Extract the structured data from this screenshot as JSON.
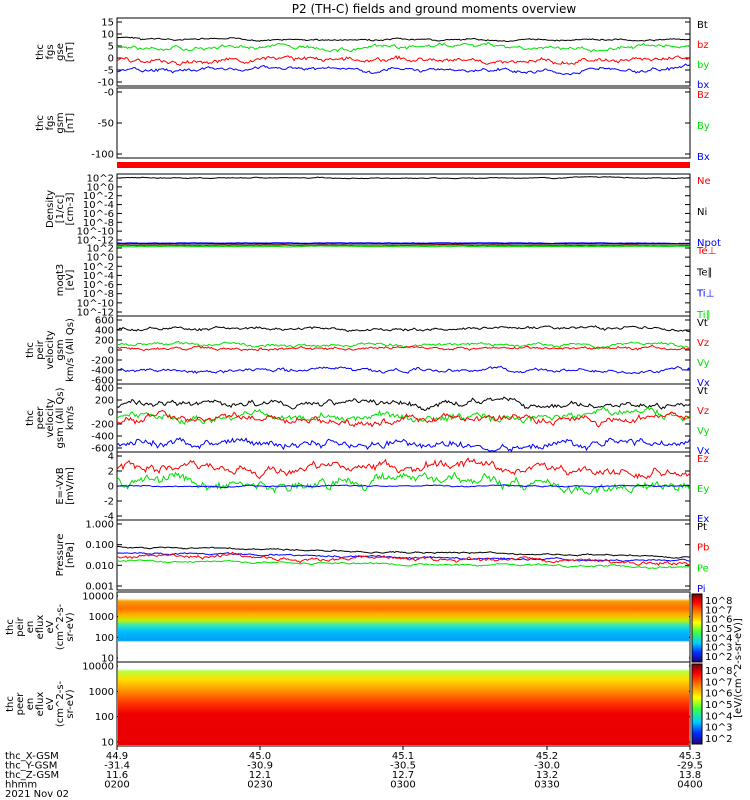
{
  "title": "P2 (TH-C) fields and ground moments overview",
  "footer": {
    "labels": [
      "thc_X-GSM",
      "thc_Y-GSM",
      "thc_Z-GSM",
      "hhmm",
      "2021 Nov 02"
    ],
    "columns": [
      [
        "44.9",
        "-31.4",
        "11.6",
        "0200"
      ],
      [
        "45.0",
        "-30.9",
        "12.1",
        "0230"
      ],
      [
        "45.1",
        "-30.5",
        "12.7",
        "0300"
      ],
      [
        "45.2",
        "-30.0",
        "13.2",
        "0330"
      ],
      [
        "45.3",
        "-29.5",
        "13.8",
        "0400"
      ]
    ]
  },
  "colorbar": {
    "label": "[eV/(cm^2-s-sr-eV)]",
    "label_alt": "[eV/(cm^2-s-str-eV)](All Qs)",
    "ticks_top": [
      "10^8",
      "10^7",
      "10^6",
      "10^5",
      "10^4",
      "10^3",
      "10^2"
    ],
    "ticks_bot": [
      "10^8",
      "10^7",
      "10^6",
      "10^5",
      "10^4",
      "10^3",
      "10^2"
    ]
  },
  "colors": {
    "black": "#000000",
    "red": "#ff0000",
    "green": "#00e000",
    "blue": "#0000ff"
  },
  "chart_data": [
    {
      "type": "line",
      "panel": "fgs_gse",
      "ylabel": [
        "thc",
        "fgs",
        "gse",
        "[nT]"
      ],
      "yticks": [
        "15",
        "10",
        "5",
        "0",
        "-5",
        "-10"
      ],
      "ylim": [
        -10,
        15
      ],
      "series": [
        {
          "name": "Bt",
          "color": "#000000"
        },
        {
          "name": "bz",
          "color": "#ff0000"
        },
        {
          "name": "by",
          "color": "#00e000"
        },
        {
          "name": "bx",
          "color": "#0000ff"
        }
      ]
    },
    {
      "type": "line",
      "panel": "fgs_gsm",
      "ylabel": [
        "thc",
        "fgs",
        "gsm",
        "[nT]"
      ],
      "yticks": [
        "-0",
        "-50",
        "-100"
      ],
      "ylim": [
        -130,
        0
      ],
      "series": [
        {
          "name": "Bz",
          "color": "#ff0000"
        },
        {
          "name": "By",
          "color": "#00e000"
        },
        {
          "name": "Bx",
          "color": "#0000ff"
        }
      ]
    },
    {
      "type": "line",
      "panel": "density",
      "ylabel": [
        "Density",
        "[1/cc]",
        "[cm-3]"
      ],
      "yticks": [
        "10^2",
        "10^0",
        "10^-2",
        "10^-4",
        "10^-6",
        "10^-8",
        "10^-10",
        "10^-12"
      ],
      "series": [
        {
          "name": "Ne",
          "color": "#ff0000"
        },
        {
          "name": "Ni",
          "color": "#000000"
        },
        {
          "name": "Npot",
          "color": "#0000ff"
        }
      ]
    },
    {
      "type": "line",
      "panel": "temperature",
      "ylabel": [
        "moqt3",
        "[eV]"
      ],
      "yticks": [
        "10^2",
        "10^0",
        "10^-2",
        "10^-4",
        "10^-6",
        "10^-8",
        "10^-10",
        "10^-12"
      ],
      "series": [
        {
          "name": "Te⊥",
          "color": "#ff0000"
        },
        {
          "name": "Te∥",
          "color": "#000000"
        },
        {
          "name": "Ti⊥",
          "color": "#0000ff"
        },
        {
          "name": "Ti∥",
          "color": "#00e000"
        }
      ]
    },
    {
      "type": "line",
      "panel": "peir_velocity",
      "ylabel": [
        "thc",
        "peir",
        "velocity",
        "gsm",
        "km/s (All Qs)"
      ],
      "yticks": [
        "600",
        "400",
        "200",
        "0",
        "-200",
        "-400",
        "-600"
      ],
      "ylim": [
        -700,
        650
      ],
      "series": [
        {
          "name": "Vt",
          "color": "#000000"
        },
        {
          "name": "Vz",
          "color": "#ff0000"
        },
        {
          "name": "Vy",
          "color": "#00e000"
        },
        {
          "name": "Vx",
          "color": "#0000ff"
        }
      ]
    },
    {
      "type": "line",
      "panel": "peer_velocity",
      "ylabel": [
        "thc",
        "peer",
        "velocity",
        "gsm (All Qs)",
        "km/s"
      ],
      "yticks": [
        "400",
        "200",
        "0",
        "-200",
        "-400",
        "-600"
      ],
      "ylim": [
        -700,
        650
      ],
      "series": [
        {
          "name": "Vt",
          "color": "#000000"
        },
        {
          "name": "Vz",
          "color": "#ff0000"
        },
        {
          "name": "Vy",
          "color": "#00e000"
        },
        {
          "name": "Vx",
          "color": "#0000ff"
        }
      ]
    },
    {
      "type": "line",
      "panel": "efield",
      "ylabel": [
        "E=-VxB",
        "[mV/m]"
      ],
      "yticks": [
        "4",
        "2",
        "0",
        "-2",
        "-4"
      ],
      "ylim": [
        -4,
        4
      ],
      "series": [
        {
          "name": "Ez",
          "color": "#ff0000"
        },
        {
          "name": "Ey",
          "color": "#00e000"
        },
        {
          "name": "Ex",
          "color": "#0000ff"
        }
      ]
    },
    {
      "type": "line",
      "panel": "pressure",
      "ylabel": [
        "Pressure",
        "[nPa]"
      ],
      "yticks": [
        "1.000",
        "0.100",
        "0.010",
        "0.001"
      ],
      "series": [
        {
          "name": "Pt",
          "color": "#000000"
        },
        {
          "name": "Pb",
          "color": "#ff0000"
        },
        {
          "name": "Pe",
          "color": "#00e000"
        },
        {
          "name": "Pi",
          "color": "#0000ff"
        }
      ],
      "legend_note": "(All Qs)"
    },
    {
      "type": "heatmap",
      "panel": "peir_eflux",
      "ylabel": [
        "thc",
        "peir",
        "en",
        "eflux",
        "eV",
        "(cm^2-s-",
        "sr-eV)"
      ],
      "yticks": [
        "10000",
        "1000",
        "100",
        "10"
      ]
    },
    {
      "type": "heatmap",
      "panel": "peer_eflux",
      "ylabel": [
        "thc",
        "peer",
        "en",
        "eflux",
        "eV",
        "(cm^2-s-",
        "sr-eV)"
      ],
      "yticks": [
        "10000",
        "1000",
        "100",
        "10"
      ]
    }
  ]
}
